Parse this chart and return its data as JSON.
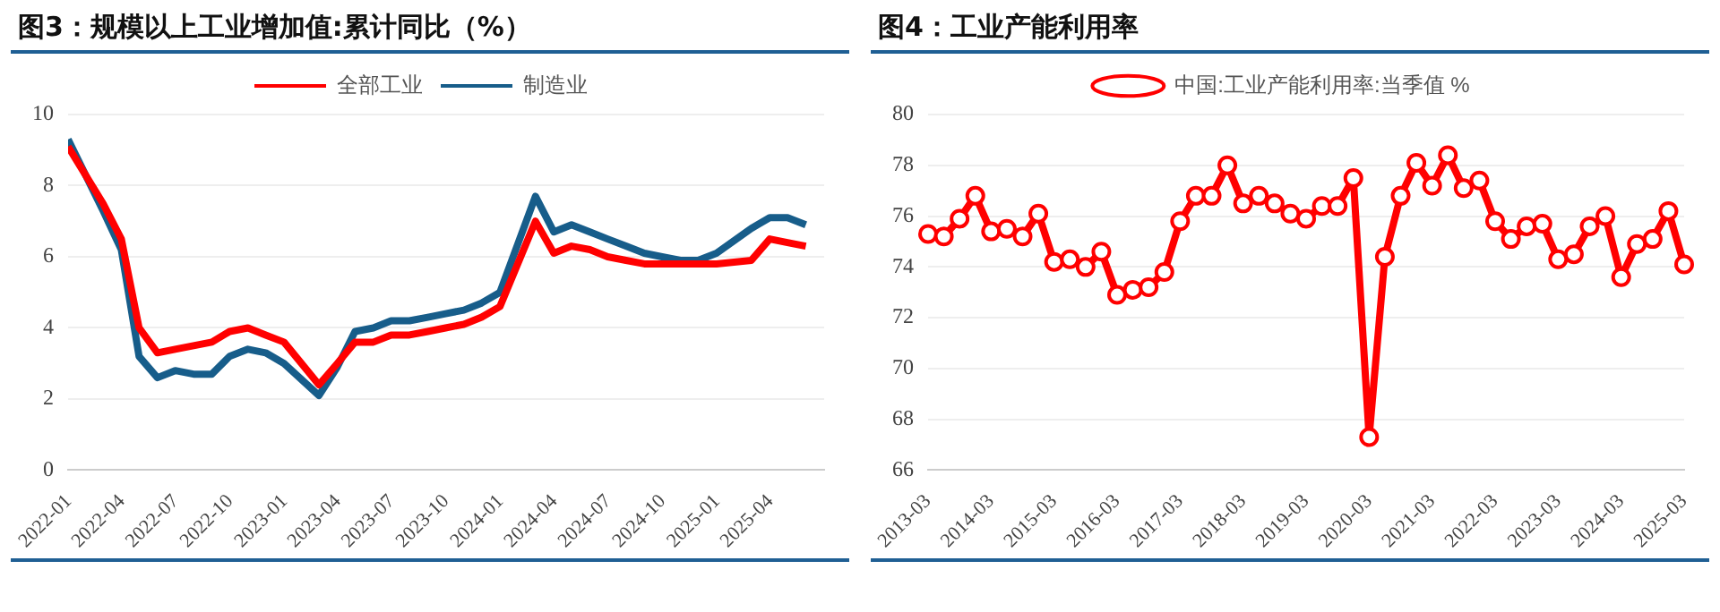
{
  "chart_data": [
    {
      "type": "line",
      "title": "图3：规模以上工业增加值:累计同比（%）",
      "legend": "top",
      "grid": "y",
      "line_style": "solid",
      "xlim": [
        "2021-12-31",
        "2025-07"
      ],
      "xticks": [
        "2022-01",
        "2022-04",
        "2022-07",
        "2022-10",
        "2023-01",
        "2023-04",
        "2023-07",
        "2023-10",
        "2024-01",
        "2024-04",
        "2024-07",
        "2024-10",
        "2025-01",
        "2025-04"
      ],
      "ylim": [
        0,
        10
      ],
      "yticks": [
        0,
        2,
        4,
        6,
        8,
        10
      ],
      "x": [
        "2021-12-31",
        "2022-02-28",
        "2022-03-31",
        "2022-04-30",
        "2022-05-31",
        "2022-06-30",
        "2022-07-31",
        "2022-08-31",
        "2022-09-30",
        "2022-10-31",
        "2022-11-30",
        "2022-12-31",
        "2023-02-28",
        "2023-03-31",
        "2023-04-30",
        "2023-05-31",
        "2023-06-30",
        "2023-07-31",
        "2023-08-31",
        "2023-09-30",
        "2023-10-31",
        "2023-11-30",
        "2023-12-31",
        "2024-02-29",
        "2024-03-31",
        "2024-04-30",
        "2024-05-31",
        "2024-06-30",
        "2024-07-31",
        "2024-08-31",
        "2024-09-30",
        "2024-10-31",
        "2024-11-30",
        "2024-12-31",
        "2025-02-28",
        "2025-03-31",
        "2025-04-30",
        "2025-05-31"
      ],
      "series": [
        {
          "name": "全部工业",
          "color": "#ff0000",
          "values": [
            9.1,
            7.5,
            6.5,
            4.0,
            3.3,
            3.4,
            3.5,
            3.6,
            3.9,
            4.0,
            3.8,
            3.6,
            2.4,
            3.0,
            3.6,
            3.6,
            3.8,
            3.8,
            3.9,
            4.0,
            4.1,
            4.3,
            4.6,
            7.0,
            6.1,
            6.3,
            6.2,
            6.0,
            5.9,
            5.8,
            5.8,
            5.8,
            5.8,
            5.8,
            5.9,
            6.5,
            6.4,
            6.3
          ]
        },
        {
          "name": "制造业",
          "color": "#175d8a",
          "values": [
            9.3,
            7.3,
            6.2,
            3.2,
            2.6,
            2.8,
            2.7,
            2.7,
            3.2,
            3.4,
            3.3,
            3.0,
            2.1,
            2.9,
            3.9,
            4.0,
            4.2,
            4.2,
            4.3,
            4.4,
            4.5,
            4.7,
            5.0,
            7.7,
            6.7,
            6.9,
            6.7,
            6.5,
            6.3,
            6.1,
            6.0,
            5.9,
            5.9,
            6.1,
            6.8,
            7.1,
            7.1,
            6.9
          ]
        }
      ]
    },
    {
      "type": "line",
      "title": "图4：工业产能利用率",
      "legend": "top",
      "grid": "y",
      "line_style": "solid",
      "marker": "circle",
      "categories": [
        "2013-03",
        null,
        null,
        null,
        "2014-03",
        null,
        null,
        null,
        "2015-03",
        null,
        null,
        null,
        "2016-03",
        null,
        null,
        null,
        "2017-03",
        null,
        null,
        null,
        "2018-03",
        null,
        null,
        null,
        "2019-03",
        null,
        null,
        null,
        "2020-03",
        null,
        null,
        null,
        "2021-03",
        null,
        null,
        null,
        "2022-03",
        null,
        null,
        null,
        "2023-03",
        null,
        null,
        null,
        "2024-03",
        null,
        null,
        null,
        "2025-03"
      ],
      "ylim": [
        66,
        80
      ],
      "yticks": [
        66,
        68,
        70,
        72,
        74,
        76,
        78,
        80
      ],
      "series": [
        {
          "name": "中国:工业产能利用率:当季值 %",
          "color": "#ff0000",
          "values": [
            75.3,
            75.2,
            75.9,
            76.8,
            75.4,
            75.5,
            75.2,
            76.1,
            74.2,
            74.3,
            74.0,
            74.6,
            72.9,
            73.1,
            73.2,
            73.8,
            75.8,
            76.8,
            76.8,
            78.0,
            76.5,
            76.8,
            76.5,
            76.1,
            75.9,
            76.4,
            76.4,
            77.5,
            67.3,
            74.4,
            76.8,
            78.1,
            77.2,
            78.4,
            77.1,
            77.4,
            75.8,
            75.1,
            75.6,
            75.7,
            74.3,
            74.5,
            75.6,
            76.0,
            73.6,
            74.9,
            75.1,
            76.2,
            74.1
          ]
        }
      ]
    }
  ]
}
